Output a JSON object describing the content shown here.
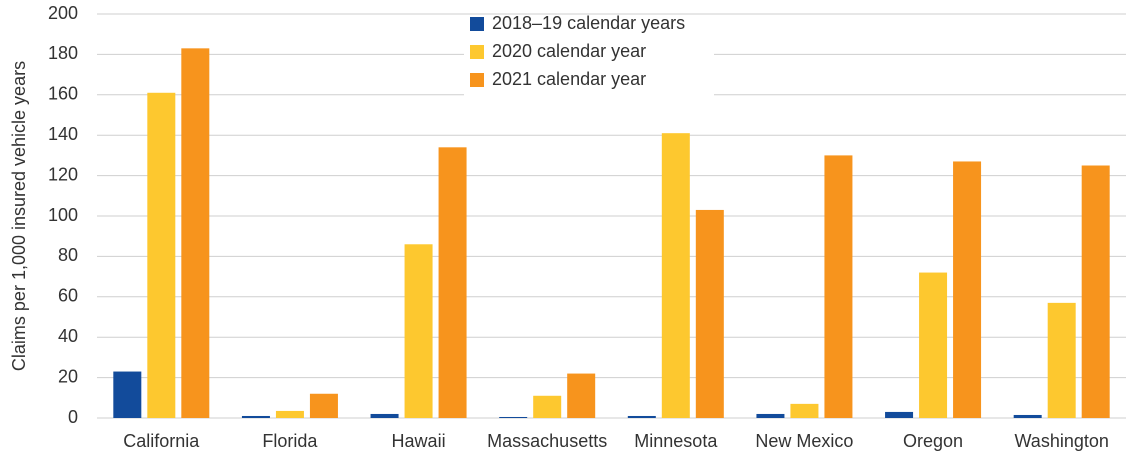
{
  "chart_data": {
    "type": "bar",
    "ylabel": "Claims per 1,000 insured vehicle years",
    "categories": [
      "California",
      "Florida",
      "Hawaii",
      "Massachusetts",
      "Minnesota",
      "New Mexico",
      "Oregon",
      "Washington"
    ],
    "series": [
      {
        "name": "2018–19 calendar years",
        "color": "#124b9b",
        "values": [
          23,
          1,
          2,
          0.5,
          1,
          2,
          3,
          1.5
        ]
      },
      {
        "name": "2020 calendar year",
        "color": "#fdc82f",
        "values": [
          161,
          3.5,
          86,
          11,
          141,
          7,
          72,
          57
        ]
      },
      {
        "name": "2021 calendar year",
        "color": "#f7941d",
        "values": [
          183,
          12,
          134,
          22,
          103,
          130,
          127,
          125
        ]
      }
    ],
    "ylim": [
      0,
      200
    ],
    "yticks": [
      0,
      20,
      40,
      60,
      80,
      100,
      120,
      140,
      160,
      180,
      200
    ],
    "grid": true,
    "legend": "top"
  }
}
